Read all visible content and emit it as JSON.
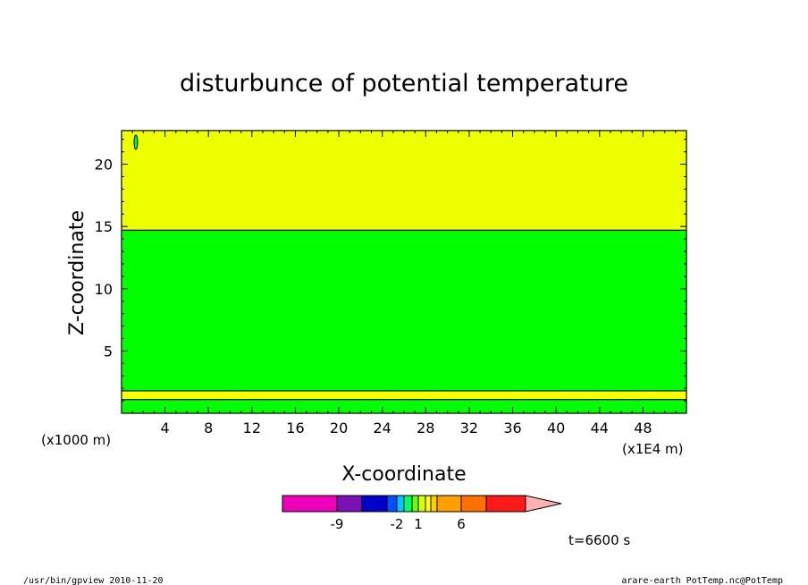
{
  "chart_data": {
    "type": "heatmap",
    "title": "disturbunce of potential temperature",
    "xlabel": "X-coordinate",
    "ylabel": "Z-coordinate",
    "x_unit_left": "(x1000 m)",
    "x_unit_right": "(x1E4 m)",
    "xlim": [
      0,
      52
    ],
    "ylim": [
      0,
      22.7
    ],
    "x_ticks": [
      "4",
      "8",
      "12",
      "16",
      "20",
      "24",
      "28",
      "32",
      "36",
      "40",
      "44",
      "48"
    ],
    "x_tick_values": [
      4,
      8,
      12,
      16,
      20,
      24,
      28,
      32,
      36,
      40,
      44,
      48
    ],
    "y_ticks": [
      "5",
      "10",
      "15",
      "20"
    ],
    "y_tick_values": [
      5,
      10,
      15,
      20
    ],
    "bands": [
      {
        "z_from": 0,
        "z_to": 1.1,
        "color": "#00ff00"
      },
      {
        "z_from": 1.1,
        "z_to": 1.8,
        "color": "#ffff00"
      },
      {
        "z_from": 1.8,
        "z_to": 14.7,
        "color": "#00ff00"
      },
      {
        "z_from": 14.7,
        "z_to": 22.7,
        "color": "#eeff00"
      }
    ],
    "colorbar": {
      "colors": [
        "#ee00bb",
        "#7a10b8",
        "#0000c8",
        "#0050ff",
        "#00c8ff",
        "#00ff60",
        "#66ff00",
        "#d8ff00",
        "#ffff00",
        "#ffd000",
        "#ffa000",
        "#ff7000",
        "#ff1a1a",
        "#ff7777",
        "#ffb0b0"
      ],
      "labels": [
        "-9",
        "-2",
        "1",
        "6"
      ]
    },
    "time_label": "t=6600 s"
  },
  "footer": {
    "left": "/usr/bin/gpview  2010-11-20",
    "right": "arare-earth_PotTemp.nc@PotTemp"
  }
}
